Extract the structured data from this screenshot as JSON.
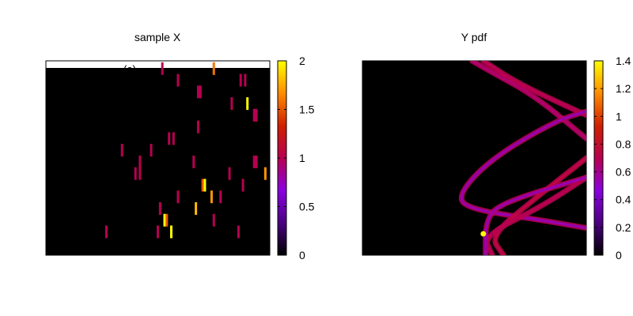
{
  "chart_data": [
    {
      "type": "heatmap",
      "title": "sample X",
      "panel_overlay_text": "(a)",
      "background_color": "#000000",
      "colormap": [
        "#000000",
        "#4b0082",
        "#8a00e0",
        "#b80050",
        "#d02000",
        "#ff8c00",
        "#ffff00"
      ],
      "colorbar": {
        "min": 0,
        "max": 2,
        "tick_labels": [
          "0",
          "0.5",
          "1",
          "1.5",
          "2"
        ]
      },
      "grid": false,
      "marks": [
        {
          "x": 0.52,
          "y": 0.96,
          "value": 1.0
        },
        {
          "x": 0.75,
          "y": 0.96,
          "value": 1.6
        },
        {
          "x": 0.59,
          "y": 0.9,
          "value": 1.0
        },
        {
          "x": 0.87,
          "y": 0.9,
          "value": 1.0
        },
        {
          "x": 0.89,
          "y": 0.9,
          "value": 1.0
        },
        {
          "x": 0.68,
          "y": 0.84,
          "value": 1.0
        },
        {
          "x": 0.69,
          "y": 0.84,
          "value": 1.0
        },
        {
          "x": 0.83,
          "y": 0.78,
          "value": 1.0
        },
        {
          "x": 0.9,
          "y": 0.78,
          "value": 2.0
        },
        {
          "x": 0.93,
          "y": 0.72,
          "value": 1.0
        },
        {
          "x": 0.94,
          "y": 0.72,
          "value": 1.0
        },
        {
          "x": 0.68,
          "y": 0.66,
          "value": 1.0
        },
        {
          "x": 0.55,
          "y": 0.6,
          "value": 1.0
        },
        {
          "x": 0.57,
          "y": 0.6,
          "value": 1.0
        },
        {
          "x": 0.34,
          "y": 0.54,
          "value": 1.0
        },
        {
          "x": 0.47,
          "y": 0.54,
          "value": 1.0
        },
        {
          "x": 0.42,
          "y": 0.48,
          "value": 1.0
        },
        {
          "x": 0.66,
          "y": 0.48,
          "value": 1.0
        },
        {
          "x": 0.93,
          "y": 0.48,
          "value": 1.0
        },
        {
          "x": 0.94,
          "y": 0.48,
          "value": 1.0
        },
        {
          "x": 0.4,
          "y": 0.42,
          "value": 1.0
        },
        {
          "x": 0.42,
          "y": 0.42,
          "value": 1.0
        },
        {
          "x": 0.82,
          "y": 0.42,
          "value": 1.0
        },
        {
          "x": 0.98,
          "y": 0.42,
          "value": 1.7
        },
        {
          "x": 0.7,
          "y": 0.36,
          "value": 1.5
        },
        {
          "x": 0.71,
          "y": 0.36,
          "value": 2.0
        },
        {
          "x": 0.88,
          "y": 0.36,
          "value": 1.0
        },
        {
          "x": 0.59,
          "y": 0.3,
          "value": 1.0
        },
        {
          "x": 0.74,
          "y": 0.3,
          "value": 1.7
        },
        {
          "x": 0.78,
          "y": 0.3,
          "value": 1.0
        },
        {
          "x": 0.51,
          "y": 0.24,
          "value": 1.0
        },
        {
          "x": 0.67,
          "y": 0.24,
          "value": 1.8
        },
        {
          "x": 0.53,
          "y": 0.18,
          "value": 2.0
        },
        {
          "x": 0.54,
          "y": 0.18,
          "value": 1.5
        },
        {
          "x": 0.75,
          "y": 0.18,
          "value": 1.0
        },
        {
          "x": 0.27,
          "y": 0.12,
          "value": 1.0
        },
        {
          "x": 0.5,
          "y": 0.12,
          "value": 1.0
        },
        {
          "x": 0.56,
          "y": 0.12,
          "value": 2.0
        },
        {
          "x": 0.86,
          "y": 0.12,
          "value": 1.0
        }
      ]
    },
    {
      "type": "heatmap",
      "title": "Y pdf",
      "background_color": "#000000",
      "colormap": [
        "#000000",
        "#4b0082",
        "#8a00e0",
        "#b80050",
        "#d02000",
        "#ff8c00",
        "#ffff00"
      ],
      "colorbar": {
        "min": 0,
        "max": 1.4,
        "tick_labels": [
          "0",
          "0.2",
          "0.4",
          "0.6",
          "0.8",
          "1",
          "1.2",
          "1.4"
        ]
      },
      "grid": false,
      "curves": [
        {
          "points": [
            [
              0.54,
              1.0
            ],
            [
              0.7,
              0.88
            ],
            [
              1.0,
              0.72
            ]
          ],
          "value": 0.7
        },
        {
          "points": [
            [
              0.49,
              1.0
            ],
            [
              0.58,
              0.94
            ],
            [
              0.77,
              0.82
            ],
            [
              1.0,
              0.6
            ]
          ],
          "value": 0.65
        },
        {
          "points": [
            [
              1.0,
              0.74
            ],
            [
              0.86,
              0.69
            ],
            [
              0.58,
              0.5
            ],
            [
              0.43,
              0.32
            ],
            [
              0.46,
              0.24
            ],
            [
              0.8,
              0.18
            ],
            [
              1.0,
              0.14
            ]
          ],
          "value": 0.55
        },
        {
          "points": [
            [
              1.0,
              0.5
            ],
            [
              0.78,
              0.3
            ],
            [
              0.57,
              0.1
            ],
            [
              0.63,
              0.0
            ]
          ],
          "value": 0.75
        },
        {
          "points": [
            [
              1.0,
              0.4
            ],
            [
              0.8,
              0.25
            ],
            [
              0.54,
              0.1
            ],
            [
              0.58,
              0.0
            ]
          ],
          "value": 0.7
        },
        {
          "points": [
            [
              0.55,
              0.0
            ],
            [
              0.55,
              0.18
            ],
            [
              0.62,
              0.27
            ],
            [
              1.0,
              0.4
            ]
          ],
          "value": 0.55
        }
      ],
      "peak": {
        "x": 0.54,
        "y": 0.11,
        "value": 1.4
      }
    }
  ]
}
